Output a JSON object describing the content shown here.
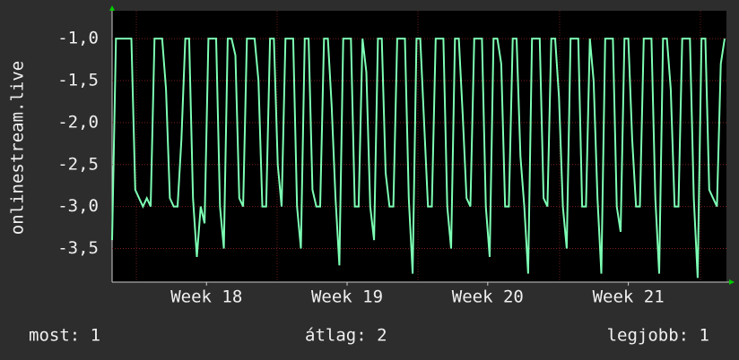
{
  "chart_data": {
    "type": "line",
    "y_label": "onlinestream.live",
    "color": "#7dffb4",
    "values": [
      -3.4,
      -1,
      -1,
      -1,
      -1,
      -1,
      -2.8,
      -2.9,
      -3,
      -2.9,
      -3,
      -1,
      -1,
      -1,
      -1.6,
      -2.9,
      -3,
      -3,
      -2.2,
      -1,
      -1,
      -2.9,
      -3.6,
      -3,
      -3.2,
      -1,
      -1,
      -1,
      -3,
      -3.5,
      -1,
      -1,
      -1.2,
      -2.9,
      -3,
      -1,
      -1,
      -1,
      -1.5,
      -3,
      -3,
      -1,
      -1,
      -2.5,
      -3,
      -1,
      -1,
      -1,
      -3,
      -3.5,
      -1,
      -1,
      -2.8,
      -3,
      -3,
      -1,
      -1,
      -1.8,
      -2.9,
      -3.7,
      -1,
      -1,
      -1,
      -3,
      -3,
      -1,
      -1.4,
      -3,
      -3.4,
      -1,
      -1,
      -2.6,
      -3,
      -3,
      -1,
      -1,
      -1,
      -2.9,
      -3.8,
      -1,
      -1,
      -2,
      -3,
      -3,
      -1,
      -1,
      -1,
      -3,
      -3.5,
      -1,
      -1,
      -1.9,
      -2.9,
      -3,
      -1,
      -1,
      -1,
      -3,
      -3.6,
      -1,
      -1,
      -1.3,
      -3,
      -3,
      -1,
      -1,
      -2.4,
      -3,
      -3.8,
      -1,
      -1,
      -1,
      -2.9,
      -3,
      -1,
      -1,
      -1.7,
      -3,
      -3.5,
      -1,
      -1,
      -1,
      -3,
      -3,
      -1,
      -1.5,
      -2.9,
      -3.8,
      -1,
      -1,
      -1,
      -3,
      -3.3,
      -1,
      -1,
      -2.2,
      -3,
      -3,
      -1,
      -1,
      -1,
      -2.9,
      -3.8,
      -1,
      -1,
      -1.6,
      -3,
      -3,
      -1,
      -1,
      -1,
      -2.9,
      -3.85,
      -1,
      -1,
      -2.8,
      -2.9,
      -3,
      -1.3,
      -1
    ],
    "xlim": [
      0,
      159
    ],
    "xticks": [
      {
        "value": 24.5,
        "label": "Week 18"
      },
      {
        "value": 61,
        "label": "Week 19"
      },
      {
        "value": 97.5,
        "label": "Week 20"
      },
      {
        "value": 134,
        "label": "Week 21"
      }
    ],
    "ylim": [
      -3.9,
      -0.7
    ],
    "yticks": [
      {
        "value": -1,
        "label": "-1,0"
      },
      {
        "value": -1.5,
        "label": "-1,5"
      },
      {
        "value": -2,
        "label": "-2,0"
      },
      {
        "value": -2.5,
        "label": "-2,5"
      },
      {
        "value": -3,
        "label": "-3,0"
      },
      {
        "value": -3.5,
        "label": "-3,5"
      }
    ],
    "grid": true,
    "summary": [
      "most: 1",
      "átlag: 2",
      "legjobb: 1"
    ]
  }
}
